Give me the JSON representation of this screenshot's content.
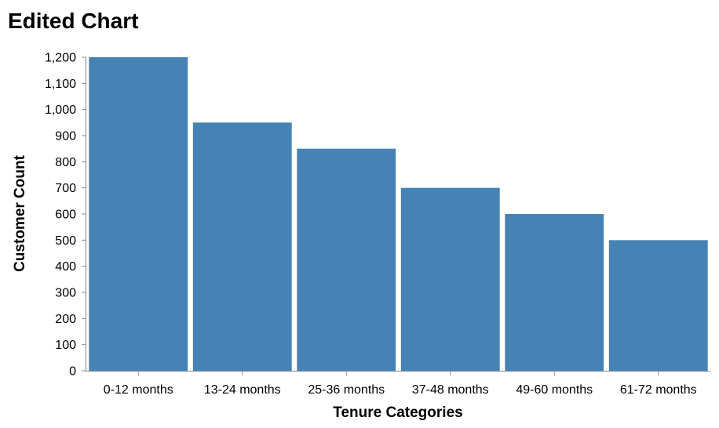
{
  "chart_data": {
    "type": "bar",
    "title": "Edited Chart",
    "xlabel": "Tenure Categories",
    "ylabel": "Customer Count",
    "categories": [
      "0-12 months",
      "13-24 months",
      "25-36 months",
      "37-48 months",
      "49-60 months",
      "61-72 months"
    ],
    "values": [
      1200,
      950,
      850,
      700,
      600,
      500
    ],
    "ylim": [
      0,
      1200
    ],
    "yticks": [
      0,
      100,
      200,
      300,
      400,
      500,
      600,
      700,
      800,
      900,
      1000,
      1100,
      1200
    ],
    "ytick_labels": [
      "0",
      "100",
      "200",
      "300",
      "400",
      "500",
      "600",
      "700",
      "800",
      "900",
      "1,000",
      "1,100",
      "1,200"
    ],
    "grid": false,
    "bar_color": "#4682b4"
  }
}
